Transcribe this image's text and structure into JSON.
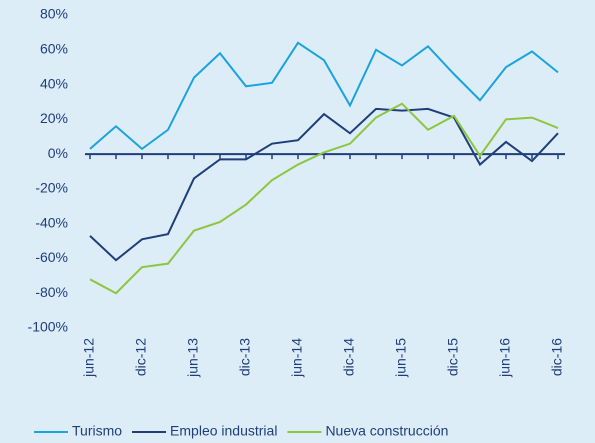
{
  "chart_data": {
    "type": "line",
    "categories": [
      "jun-12",
      null,
      "dic-12",
      null,
      "jun-13",
      null,
      "dic-13",
      null,
      "jun-14",
      null,
      "dic-14",
      null,
      "jun-15",
      null,
      "dic-15",
      null,
      "jun-16",
      null,
      "dic-16"
    ],
    "series": [
      {
        "name": "Turismo",
        "color": "#1aa3dc",
        "values": [
          3,
          16,
          3,
          14,
          44,
          58,
          39,
          41,
          64,
          54,
          28,
          60,
          51,
          62,
          46,
          31,
          50,
          59,
          47
        ]
      },
      {
        "name": "Empleo industrial",
        "color": "#1f3e7a",
        "values": [
          -47,
          -61,
          -49,
          -46,
          -14,
          -3,
          -3,
          6,
          8,
          23,
          12,
          26,
          25,
          26,
          21,
          -6,
          7,
          -4,
          12
        ]
      },
      {
        "name": "Nueva construcción",
        "color": "#8dc63f",
        "values": [
          -72,
          -80,
          -65,
          -63,
          -44,
          -39,
          -29,
          -15,
          -6,
          1,
          6,
          21,
          29,
          14,
          22,
          -1,
          20,
          21,
          15
        ]
      }
    ],
    "ylim": [
      -100,
      80
    ],
    "yticks": [
      {
        "value": -100,
        "label": "-100%"
      },
      {
        "value": -80,
        "label": "-80%"
      },
      {
        "value": -60,
        "label": "-60%"
      },
      {
        "value": -40,
        "label": "-40%"
      },
      {
        "value": -20,
        "label": "-20%"
      },
      {
        "value": 0,
        "label": "0%"
      },
      {
        "value": 20,
        "label": "20%"
      },
      {
        "value": 40,
        "label": "40%"
      },
      {
        "value": 60,
        "label": "60%"
      },
      {
        "value": 80,
        "label": "80%"
      }
    ],
    "grid": false,
    "legend": "bottom"
  }
}
